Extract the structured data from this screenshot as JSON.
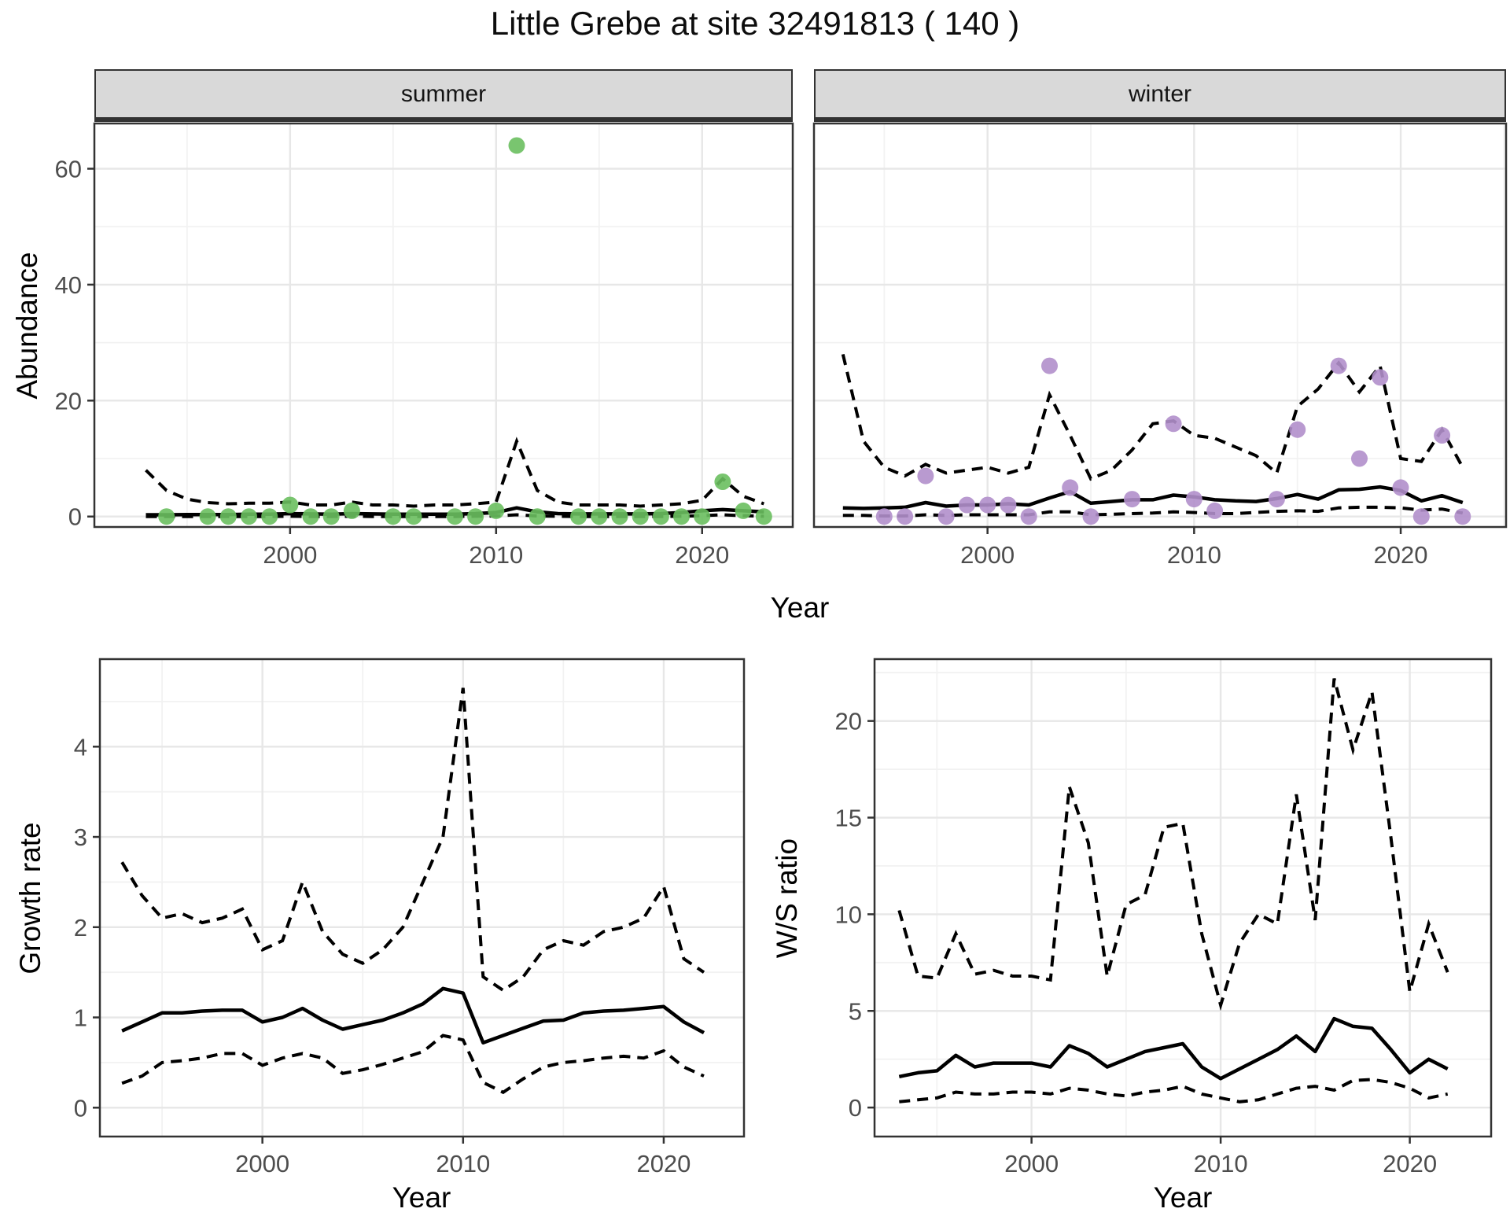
{
  "title": "Little Grebe at site 32491813 ( 140 )",
  "axes": {
    "abundance_label": "Abundance",
    "year_label": "Year",
    "growth_label": "Growth rate",
    "ws_label": "W/S ratio"
  },
  "chart_data": [
    {
      "type": "scatter",
      "facet_label": "summer",
      "xlabel": "Year",
      "ylabel": "Abundance",
      "xlim": [
        1990.5,
        2024.4
      ],
      "ylim": [
        -1.8,
        67.8
      ],
      "xticks": [
        2000,
        2010,
        2020
      ],
      "yticks": [
        0,
        20,
        40,
        60
      ],
      "xminor": [
        1995,
        2005,
        2015
      ],
      "yminor": [
        10,
        30,
        50
      ],
      "grid": true,
      "legend": "none",
      "point_color": "#6abf5f",
      "line_color": "#000000",
      "points": {
        "x": [
          1994,
          1996,
          1997,
          1998,
          1999,
          2000,
          2001,
          2002,
          2003,
          2005,
          2006,
          2008,
          2009,
          2010,
          2011,
          2012,
          2014,
          2015,
          2016,
          2017,
          2018,
          2019,
          2020,
          2021,
          2022,
          2023
        ],
        "y": [
          0,
          0,
          0,
          0,
          0,
          2,
          0,
          0,
          1,
          0,
          0,
          0,
          0,
          1,
          64,
          0,
          0,
          0,
          0,
          0,
          0,
          0,
          0,
          6,
          1,
          0
        ]
      },
      "years": [
        1993,
        1994,
        1995,
        1996,
        1997,
        1998,
        1999,
        2000,
        2001,
        2002,
        2003,
        2004,
        2005,
        2006,
        2007,
        2008,
        2009,
        2010,
        2011,
        2012,
        2013,
        2014,
        2015,
        2016,
        2017,
        2018,
        2019,
        2020,
        2021,
        2022,
        2023
      ],
      "fit": [
        0.3,
        0.3,
        0.35,
        0.35,
        0.35,
        0.4,
        0.4,
        0.5,
        0.45,
        0.4,
        0.5,
        0.45,
        0.4,
        0.4,
        0.4,
        0.4,
        0.5,
        0.7,
        1.5,
        0.8,
        0.5,
        0.45,
        0.45,
        0.45,
        0.45,
        0.5,
        0.7,
        1.0,
        1.2,
        1.0,
        0.8
      ],
      "upper": [
        8,
        4.5,
        3,
        2.4,
        2.2,
        2.3,
        2.3,
        2.5,
        2,
        2,
        2.5,
        2,
        2,
        1.8,
        2,
        2,
        2.2,
        2.5,
        13,
        4.5,
        2.5,
        2,
        2,
        2,
        1.8,
        2,
        2.2,
        2.8,
        6.5,
        3.5,
        2.2
      ],
      "lower": [
        0,
        0,
        0,
        0,
        0,
        0,
        0,
        0.05,
        0,
        0,
        0.05,
        0,
        0,
        0,
        0,
        0,
        0.05,
        0.1,
        0.3,
        0.1,
        0.05,
        0,
        0,
        0,
        0,
        0,
        0.05,
        0.15,
        0.3,
        0.15,
        0.05
      ]
    },
    {
      "type": "scatter",
      "facet_label": "winter",
      "xlabel": "Year",
      "ylabel": "Abundance",
      "xlim": [
        1991.6,
        2025.1
      ],
      "ylim": [
        -1.8,
        67.8
      ],
      "xticks": [
        2000,
        2010,
        2020
      ],
      "yticks": [
        0,
        20,
        40,
        60
      ],
      "xminor": [
        1995,
        2005,
        2015,
        2025
      ],
      "yminor": [
        10,
        30,
        50
      ],
      "grid": true,
      "legend": "none",
      "point_color": "#b18fcb",
      "line_color": "#000000",
      "points": {
        "x": [
          1995,
          1996,
          1997,
          1998,
          1999,
          2000,
          2001,
          2002,
          2003,
          2004,
          2005,
          2007,
          2009,
          2010,
          2011,
          2014,
          2015,
          2017,
          2018,
          2019,
          2020,
          2021,
          2022,
          2023
        ],
        "y": [
          0,
          0,
          7,
          0,
          2,
          2,
          2,
          0,
          26,
          5,
          0,
          3,
          16,
          3,
          1,
          3,
          15,
          26,
          10,
          24,
          5,
          0,
          14,
          0
        ]
      },
      "years": [
        1993,
        1994,
        1995,
        1996,
        1997,
        1998,
        1999,
        2000,
        2001,
        2002,
        2003,
        2004,
        2005,
        2006,
        2007,
        2008,
        2009,
        2010,
        2011,
        2012,
        2013,
        2014,
        2015,
        2016,
        2017,
        2018,
        2019,
        2020,
        2021,
        2022,
        2023
      ],
      "fit": [
        1.5,
        1.4,
        1.5,
        1.6,
        2.4,
        1.8,
        2.0,
        2.0,
        2.2,
        2.0,
        3.2,
        4.3,
        2.3,
        2.6,
        2.9,
        2.9,
        3.7,
        3.4,
        2.9,
        2.7,
        2.6,
        3.1,
        3.8,
        3.0,
        4.6,
        4.7,
        5.1,
        4.5,
        2.7,
        3.6,
        2.4
      ],
      "upper": [
        28,
        13,
        8.5,
        7,
        9,
        7.5,
        8,
        8.5,
        7.5,
        8.5,
        21,
        14,
        6.5,
        8,
        11.5,
        16,
        16.5,
        14,
        13.5,
        12,
        10.5,
        7.5,
        19,
        22,
        26.5,
        21.5,
        26,
        10,
        9.5,
        15,
        8.5
      ],
      "lower": [
        0.2,
        0.2,
        0.1,
        0.1,
        0.3,
        0.2,
        0.3,
        0.3,
        0.3,
        0.3,
        0.8,
        0.8,
        0.3,
        0.4,
        0.5,
        0.6,
        0.8,
        0.7,
        0.5,
        0.5,
        0.7,
        0.9,
        1.0,
        0.9,
        1.5,
        1.6,
        1.6,
        1.5,
        1.1,
        1.3,
        0.6
      ]
    },
    {
      "type": "line",
      "facet_label": "",
      "xlabel": "Year",
      "ylabel": "Growth rate",
      "xlim": [
        1991.9,
        2024.0
      ],
      "ylim": [
        -0.32,
        4.97
      ],
      "xticks": [
        2000,
        2010,
        2020
      ],
      "yticks": [
        0,
        1,
        2,
        3,
        4
      ],
      "xminor": [
        1995,
        2005,
        2015
      ],
      "yminor": [
        0.5,
        1.5,
        2.5,
        3.5,
        4.5
      ],
      "grid": true,
      "legend": "none",
      "point_color": "none",
      "line_color": "#000000",
      "points": {
        "x": [],
        "y": []
      },
      "years": [
        1993,
        1994,
        1995,
        1996,
        1997,
        1998,
        1999,
        2000,
        2001,
        2002,
        2003,
        2004,
        2005,
        2006,
        2007,
        2008,
        2009,
        2010,
        2011,
        2012,
        2013,
        2014,
        2015,
        2016,
        2017,
        2018,
        2019,
        2020,
        2021,
        2022
      ],
      "fit": [
        0.85,
        0.95,
        1.05,
        1.05,
        1.07,
        1.08,
        1.08,
        0.95,
        1.0,
        1.1,
        0.97,
        0.87,
        0.92,
        0.97,
        1.05,
        1.15,
        1.32,
        1.27,
        0.72,
        0.8,
        0.88,
        0.96,
        0.97,
        1.05,
        1.07,
        1.08,
        1.1,
        1.12,
        0.95,
        0.83
      ],
      "upper": [
        2.72,
        2.35,
        2.1,
        2.15,
        2.05,
        2.1,
        2.2,
        1.75,
        1.85,
        2.5,
        1.95,
        1.7,
        1.6,
        1.75,
        2.0,
        2.5,
        3.0,
        4.65,
        1.45,
        1.3,
        1.45,
        1.75,
        1.85,
        1.8,
        1.95,
        2.0,
        2.1,
        2.45,
        1.65,
        1.5
      ],
      "lower": [
        0.27,
        0.35,
        0.5,
        0.52,
        0.55,
        0.6,
        0.6,
        0.47,
        0.55,
        0.6,
        0.55,
        0.38,
        0.42,
        0.48,
        0.55,
        0.62,
        0.8,
        0.75,
        0.28,
        0.17,
        0.32,
        0.45,
        0.5,
        0.52,
        0.55,
        0.57,
        0.55,
        0.63,
        0.45,
        0.35
      ]
    },
    {
      "type": "line",
      "facet_label": "",
      "xlabel": "Year",
      "ylabel": "W/S ratio",
      "xlim": [
        1991.7,
        2024.3
      ],
      "ylim": [
        -1.5,
        23.2
      ],
      "xticks": [
        2000,
        2010,
        2020
      ],
      "yticks": [
        0,
        5,
        10,
        15,
        20
      ],
      "xminor": [
        1995,
        2005,
        2015
      ],
      "yminor": [
        2.5,
        7.5,
        12.5,
        17.5,
        22.5
      ],
      "grid": true,
      "legend": "none",
      "point_color": "none",
      "line_color": "#000000",
      "points": {
        "x": [],
        "y": []
      },
      "years": [
        1993,
        1994,
        1995,
        1996,
        1997,
        1998,
        1999,
        2000,
        2001,
        2002,
        2003,
        2004,
        2005,
        2006,
        2007,
        2008,
        2009,
        2010,
        2011,
        2012,
        2013,
        2014,
        2015,
        2016,
        2017,
        2018,
        2019,
        2020,
        2021,
        2022
      ],
      "fit": [
        1.6,
        1.8,
        1.9,
        2.7,
        2.1,
        2.3,
        2.3,
        2.3,
        2.1,
        3.2,
        2.8,
        2.1,
        2.5,
        2.9,
        3.1,
        3.3,
        2.1,
        1.5,
        2.0,
        2.5,
        3.0,
        3.7,
        2.9,
        4.6,
        4.2,
        4.1,
        3.0,
        1.8,
        2.5,
        2.0
      ],
      "upper": [
        10.2,
        6.8,
        6.7,
        9.0,
        6.9,
        7.1,
        6.8,
        6.8,
        6.6,
        16.6,
        13.7,
        6.8,
        10.5,
        11.0,
        14.5,
        14.7,
        9.0,
        5.3,
        8.5,
        10.0,
        9.5,
        16.2,
        9.7,
        22.2,
        18.5,
        21.5,
        14.0,
        6.0,
        9.5,
        7.0
      ],
      "lower": [
        0.3,
        0.4,
        0.5,
        0.8,
        0.7,
        0.7,
        0.8,
        0.8,
        0.7,
        1.0,
        0.9,
        0.7,
        0.6,
        0.8,
        0.9,
        1.1,
        0.7,
        0.5,
        0.3,
        0.4,
        0.7,
        1.0,
        1.1,
        0.9,
        1.4,
        1.45,
        1.3,
        1.0,
        0.5,
        0.7
      ]
    }
  ]
}
